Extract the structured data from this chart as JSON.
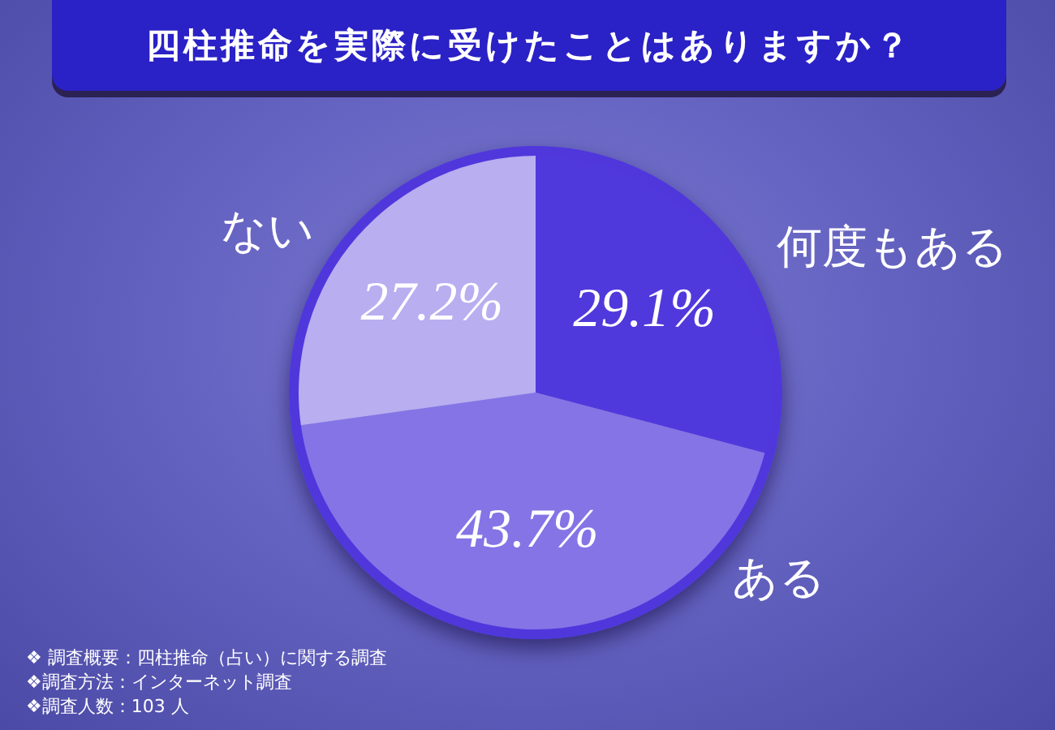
{
  "chart_data": {
    "type": "pie",
    "title": "四柱推命を実際に受けたことはありますか？",
    "categories": [
      "何度もある",
      "ある",
      "ない"
    ],
    "values": [
      29.1,
      43.7,
      27.2
    ],
    "colors": [
      "#5039dc",
      "#8574e6",
      "#b8aef0"
    ],
    "value_labels": [
      "29.1%",
      "43.7%",
      "27.2%"
    ],
    "annotations": [
      "❖ 調査概要：四柱推命（占い）に関する調査",
      "❖調査方法：インターネット調査",
      "❖調査人数：103 人"
    ]
  }
}
